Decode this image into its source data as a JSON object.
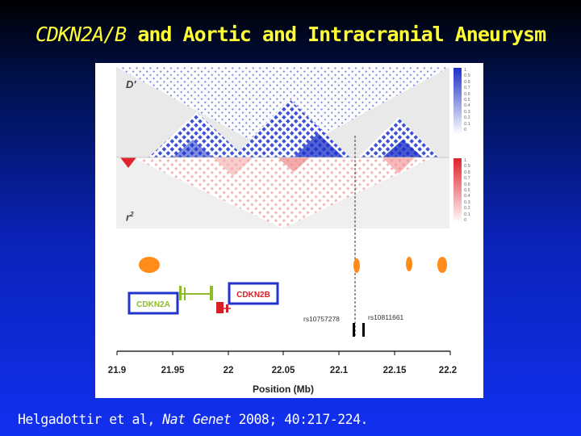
{
  "title": {
    "gene": "CDKN2A/B",
    "rest": "and Aortic and Intracranial Aneurysm"
  },
  "ld_plot": {
    "dprime_label": "D'",
    "r2_label": "r",
    "r2_superscript": "2",
    "dprime_scale": [
      "1",
      "0.9",
      "0.8",
      "0.7",
      "0.6",
      "0.5",
      "0.4",
      "0.3",
      "0.2",
      "0.1",
      "0"
    ],
    "r2_scale": [
      "1",
      "0.9",
      "0.8",
      "0.7",
      "0.6",
      "0.5",
      "0.4",
      "0.3",
      "0.2",
      "0.1",
      "0"
    ]
  },
  "genes": {
    "cdkn2a": "CDKN2A",
    "cdkn2b": "CDKN2B"
  },
  "snps": {
    "snp1": "rs10757278",
    "snp2": "rs10811661"
  },
  "axis": {
    "label": "Position (Mb)",
    "ticks": [
      "21.9",
      "21.95",
      "22",
      "22.05",
      "22.1",
      "22.15",
      "22.2"
    ]
  },
  "citation": {
    "authors": "Helgadottir et al,",
    "journal": "Nat Genet",
    "details": "2008; 40:217-224."
  },
  "colors": {
    "background_top": "#000000",
    "background_bottom": "#1230f0",
    "title": "#ffff33",
    "dprime_blue": "#1a2fc8",
    "r2_red": "#e0222a",
    "recomb_orange": "#ff8c1a",
    "cdkn2a_green": "#8dbb2a",
    "cdkn2b_red": "#d61f26",
    "gene_box_border": "#2233cc"
  }
}
